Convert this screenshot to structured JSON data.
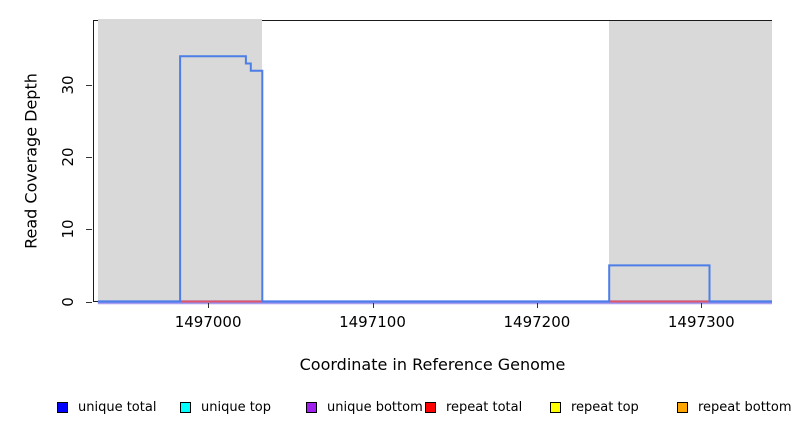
{
  "chart_data": {
    "type": "line",
    "title": "",
    "xlabel": "Coordinate in Reference Genome",
    "ylabel": "Read Coverage Depth",
    "xlim": [
      1496930,
      1497343
    ],
    "ylim": [
      0,
      39.1
    ],
    "x_ticks": [
      1497000,
      1497100,
      1497200,
      1497300
    ],
    "y_ticks": [
      0,
      10,
      20,
      30
    ],
    "grid": false,
    "legend_position": "bottom",
    "shaded_regions": [
      {
        "start": 1496933,
        "end": 1497033
      },
      {
        "start": 1497244,
        "end": 1497343
      }
    ],
    "series": [
      {
        "name": "unique total",
        "legend_color": "#0000FF",
        "line_color": "#4d7ee8",
        "steps": [
          [
            1496933,
            0
          ],
          [
            1496983,
            34
          ],
          [
            1497023,
            33
          ],
          [
            1497026,
            32
          ],
          [
            1497033,
            0
          ],
          [
            1497244,
            5
          ],
          [
            1497305,
            0
          ],
          [
            1497343,
            0
          ]
        ]
      },
      {
        "name": "unique top",
        "legend_color": "#00FFFF",
        "line_color": "#00FFFF",
        "steps": [
          [
            1496933,
            0
          ],
          [
            1497343,
            0
          ]
        ]
      },
      {
        "name": "unique bottom",
        "legend_color": "#A020F0",
        "line_color": "#A020F0",
        "steps": [
          [
            1496933,
            0
          ],
          [
            1497343,
            0
          ]
        ]
      },
      {
        "name": "repeat total",
        "legend_color": "#FF0000",
        "line_color": "#e0556a",
        "steps": [
          [
            1496933,
            0
          ],
          [
            1497343,
            0
          ]
        ]
      },
      {
        "name": "repeat top",
        "legend_color": "#FFFF00",
        "line_color": "#FFFF00",
        "steps": [
          [
            1496933,
            0
          ],
          [
            1497343,
            0
          ]
        ]
      },
      {
        "name": "repeat bottom",
        "legend_color": "#FFA500",
        "line_color": "#FFA500",
        "steps": [
          [
            1496933,
            0
          ],
          [
            1497343,
            0
          ]
        ]
      }
    ]
  },
  "colors": {
    "shade": "#d9d9d9",
    "box": "#1a1a1a",
    "baseline_glow": "#a79ef2",
    "baseline_core": "#4a5fe6",
    "baseline_repeat_red": "#e0556a",
    "coverage_blue": "#4d7ee8"
  }
}
